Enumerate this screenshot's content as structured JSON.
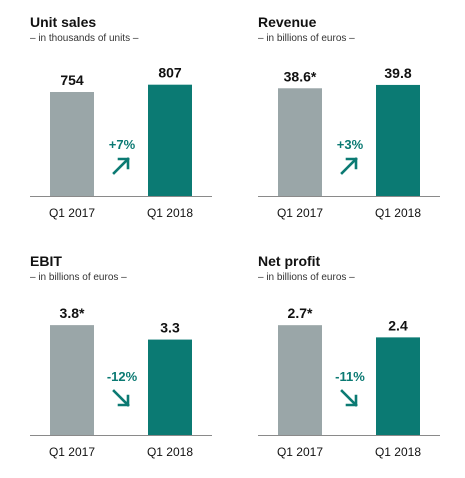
{
  "colors": {
    "q1_2017": "#9aa6a8",
    "q1_2018": "#0b7a73",
    "change": "#0b7a73",
    "axis": "#8a8a8a"
  },
  "chart_data": [
    {
      "type": "bar",
      "title": "Unit sales",
      "subtitle": "– in thousands of units –",
      "categories": [
        "Q1 2017",
        "Q1 2018"
      ],
      "values": [
        754,
        807
      ],
      "value_labels": [
        "754",
        "807"
      ],
      "change": {
        "label": "+7%",
        "direction": "up",
        "icon": "arrow-up-right-icon"
      },
      "ylim": [
        0,
        870
      ],
      "grid": false
    },
    {
      "type": "bar",
      "title": "Revenue",
      "subtitle": "– in billions of euros –",
      "categories": [
        "Q1 2017",
        "Q1 2018"
      ],
      "values": [
        38.6,
        39.8
      ],
      "value_labels": [
        "38.6*",
        "39.8"
      ],
      "change": {
        "label": "+3%",
        "direction": "up",
        "icon": "arrow-up-right-icon"
      },
      "ylim": [
        0,
        43
      ],
      "grid": false
    },
    {
      "type": "bar",
      "title": "EBIT",
      "subtitle": "– in billions of euros –",
      "categories": [
        "Q1 2017",
        "Q1 2018"
      ],
      "values": [
        3.8,
        3.3
      ],
      "value_labels": [
        "3.8*",
        "3.3"
      ],
      "change": {
        "label": "-12%",
        "direction": "down",
        "icon": "arrow-down-right-icon"
      },
      "ylim": [
        0,
        4.15
      ],
      "grid": false
    },
    {
      "type": "bar",
      "title": "Net profit",
      "subtitle": "– in billions of euros –",
      "categories": [
        "Q1 2017",
        "Q1 2018"
      ],
      "values": [
        2.7,
        2.4
      ],
      "value_labels": [
        "2.7*",
        "2.4"
      ],
      "change": {
        "label": "-11%",
        "direction": "down",
        "icon": "arrow-down-right-icon"
      },
      "ylim": [
        0,
        2.95
      ],
      "grid": false
    }
  ]
}
